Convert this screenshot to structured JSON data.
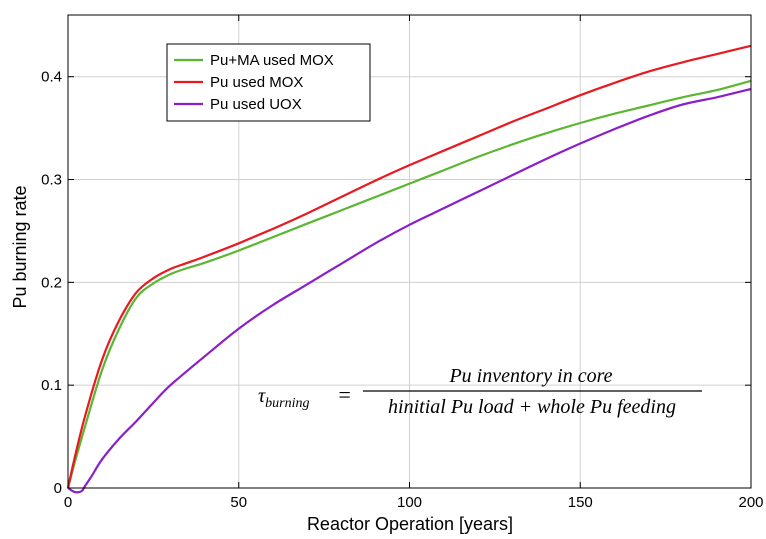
{
  "chart_data": {
    "type": "line",
    "title": "",
    "xlabel": "Reactor Operation [years]",
    "ylabel": "Pu burning rate",
    "xlim": [
      0,
      200
    ],
    "ylim": [
      0,
      0.46
    ],
    "xticks": [
      0,
      50,
      100,
      150,
      200
    ],
    "xtick_labels": [
      "0",
      "50",
      "100",
      "150",
      "200"
    ],
    "yticks": [
      0,
      0.1,
      0.2,
      0.3,
      0.4
    ],
    "ytick_labels": [
      "0",
      "0.1",
      "0.2",
      "0.3",
      "0.4"
    ],
    "grid": true,
    "legend_position": "top-left",
    "series": [
      {
        "name": "Pu+MA used MOX",
        "color": "#5bb631",
        "x": [
          0,
          2,
          5,
          10,
          15,
          20,
          25,
          30,
          35,
          40,
          50,
          60,
          70,
          80,
          90,
          100,
          110,
          120,
          130,
          140,
          150,
          160,
          170,
          180,
          190,
          200
        ],
        "y": [
          0.0,
          0.025,
          0.06,
          0.115,
          0.155,
          0.185,
          0.199,
          0.208,
          0.214,
          0.219,
          0.231,
          0.244,
          0.257,
          0.27,
          0.283,
          0.296,
          0.309,
          0.322,
          0.334,
          0.345,
          0.355,
          0.364,
          0.372,
          0.38,
          0.387,
          0.396
        ]
      },
      {
        "name": "Pu used MOX",
        "color": "#e8191f",
        "x": [
          0,
          2,
          5,
          10,
          15,
          20,
          25,
          30,
          35,
          40,
          50,
          60,
          70,
          80,
          90,
          100,
          110,
          120,
          130,
          140,
          150,
          160,
          170,
          180,
          190,
          200
        ],
        "y": [
          0.0,
          0.03,
          0.07,
          0.125,
          0.163,
          0.19,
          0.204,
          0.213,
          0.219,
          0.225,
          0.238,
          0.252,
          0.267,
          0.283,
          0.299,
          0.314,
          0.328,
          0.342,
          0.356,
          0.369,
          0.382,
          0.394,
          0.405,
          0.414,
          0.422,
          0.43
        ]
      },
      {
        "name": "Pu used UOX",
        "color": "#8a1fc9",
        "x": [
          0,
          2,
          4,
          5,
          7,
          10,
          15,
          20,
          25,
          30,
          40,
          50,
          60,
          70,
          80,
          90,
          100,
          110,
          120,
          130,
          140,
          150,
          160,
          170,
          180,
          190,
          200
        ],
        "y": [
          0.0,
          -0.004,
          -0.003,
          0.002,
          0.012,
          0.028,
          0.048,
          0.065,
          0.083,
          0.1,
          0.128,
          0.155,
          0.178,
          0.198,
          0.218,
          0.238,
          0.256,
          0.272,
          0.288,
          0.304,
          0.32,
          0.335,
          0.349,
          0.362,
          0.373,
          0.38,
          0.388
        ]
      }
    ],
    "annotation": {
      "lhs_symbol": "τ",
      "lhs_subscript": "burning",
      "equals": "=",
      "numerator": "Pu inventory in core",
      "denominator": "hinitial Pu load + whole Pu feeding"
    }
  }
}
